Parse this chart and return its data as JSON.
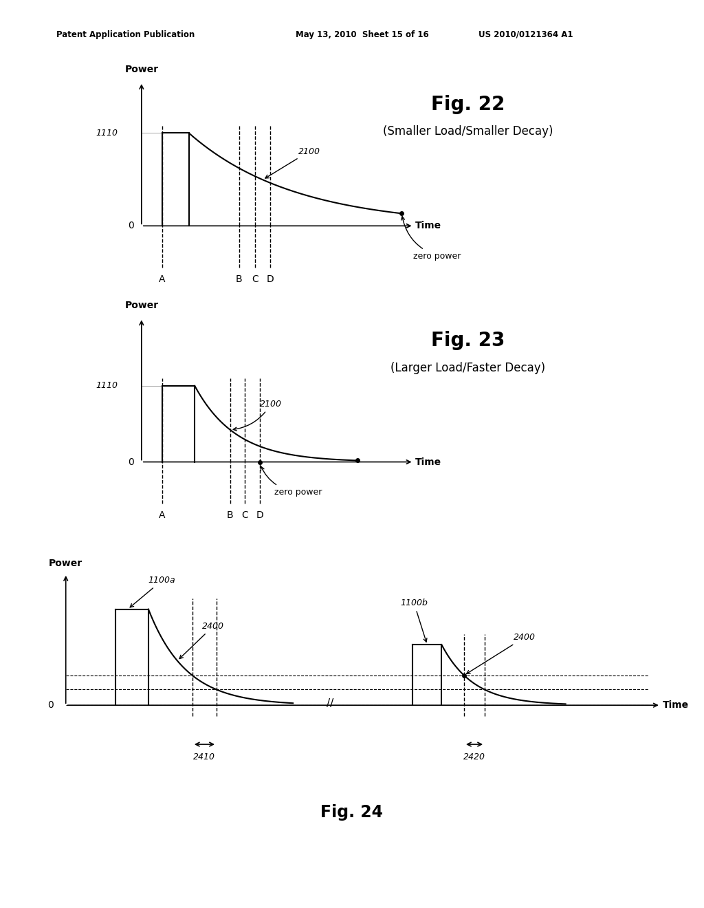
{
  "bg_color": "#ffffff",
  "header_left": "Patent Application Publication",
  "header_mid": "May 13, 2010  Sheet 15 of 16",
  "header_right": "US 2010/0121364 A1",
  "fig22_title": "Fig. 22",
  "fig22_subtitle": "(Smaller Load/Smaller Decay)",
  "fig22_label_1110": "1110",
  "fig22_label_2100": "2100",
  "fig22_dashed_labels": [
    "A",
    "B",
    "C",
    "D"
  ],
  "fig22_zero_power_label": "zero power",
  "fig22_time_label": "Time",
  "fig22_power_label": "Power",
  "fig22_zero_label": "0",
  "fig23_title": "Fig. 23",
  "fig23_subtitle": "(Larger Load/Faster Decay)",
  "fig23_label_1110": "1110",
  "fig23_label_2100": "2100",
  "fig23_dashed_labels": [
    "A",
    "B",
    "C",
    "D"
  ],
  "fig23_zero_power_label": "zero power",
  "fig23_time_label": "Time",
  "fig23_power_label": "Power",
  "fig23_zero_label": "0",
  "fig24_title": "Fig. 24",
  "fig24_label_1100a": "1100a",
  "fig24_label_1100b": "1100b",
  "fig24_label_2400a": "2400",
  "fig24_label_2400b": "2400",
  "fig24_label_2410": "2410",
  "fig24_label_2420": "2420",
  "fig24_time_label": "Time",
  "fig24_power_label": "Power",
  "fig24_zero_label": "0"
}
